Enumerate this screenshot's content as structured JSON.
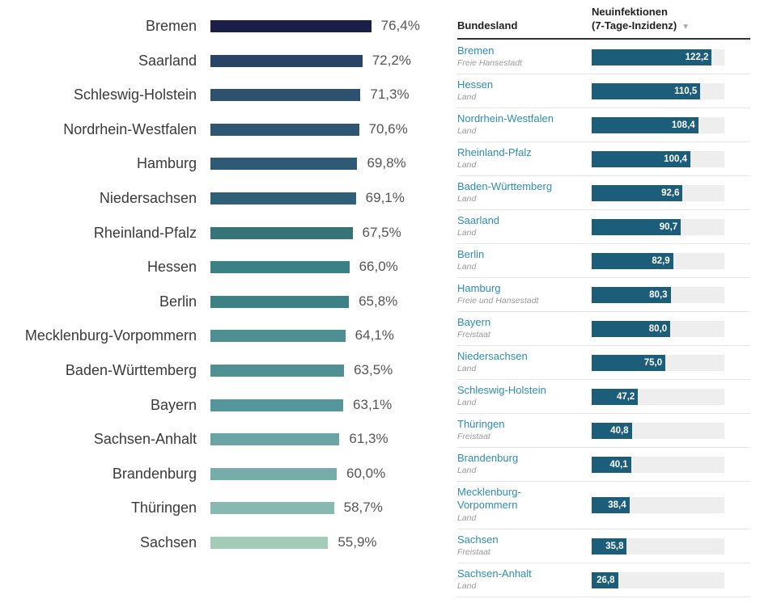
{
  "chart_data": [
    {
      "type": "bar",
      "orientation": "horizontal",
      "categories": [
        "Bremen",
        "Saarland",
        "Schleswig-Holstein",
        "Nordrhein-Westfalen",
        "Hamburg",
        "Niedersachsen",
        "Rheinland-Pfalz",
        "Hessen",
        "Berlin",
        "Mecklenburg-Vorpommern",
        "Baden-Württemberg",
        "Bayern",
        "Sachsen-Anhalt",
        "Brandenburg",
        "Thüringen",
        "Sachsen"
      ],
      "values": [
        76.4,
        72.2,
        71.3,
        70.6,
        69.8,
        69.1,
        67.5,
        66.0,
        65.8,
        64.1,
        63.5,
        63.1,
        61.3,
        60.0,
        58.7,
        55.9
      ],
      "labels": [
        "76,4%",
        "72,2%",
        "71,3%",
        "70,6%",
        "69,8%",
        "69,1%",
        "67,5%",
        "66,0%",
        "65,8%",
        "64,1%",
        "63,5%",
        "63,1%",
        "61,3%",
        "60,0%",
        "58,7%",
        "55,9%"
      ],
      "colors": [
        "#1a1f48",
        "#2a4468",
        "#2d5270",
        "#2e5673",
        "#2e5a76",
        "#306078",
        "#357479",
        "#3a8185",
        "#3b8185",
        "#4d8f92",
        "#4f9193",
        "#53979a",
        "#6aa4a4",
        "#76acaa",
        "#88b9b0",
        "#a4cab8"
      ],
      "xlim": [
        0,
        100
      ],
      "title": "",
      "xlabel": "",
      "ylabel": ""
    },
    {
      "type": "table",
      "columns": [
        "Bundesland",
        "Neuinfektionen\n(7-Tage-Inzidenz)"
      ],
      "rows": [
        {
          "name": "Bremen",
          "type": "Freie Hansestadt",
          "value": 122.2,
          "label": "122,2"
        },
        {
          "name": "Hessen",
          "type": "Land",
          "value": 110.5,
          "label": "110,5"
        },
        {
          "name": "Nordrhein-Westfalen",
          "type": "Land",
          "value": 108.4,
          "label": "108,4"
        },
        {
          "name": "Rheinland-Pfalz",
          "type": "Land",
          "value": 100.4,
          "label": "100,4"
        },
        {
          "name": "Baden-Württemberg",
          "type": "Land",
          "value": 92.6,
          "label": "92,6"
        },
        {
          "name": "Saarland",
          "type": "Land",
          "value": 90.7,
          "label": "90,7"
        },
        {
          "name": "Berlin",
          "type": "Land",
          "value": 82.9,
          "label": "82,9"
        },
        {
          "name": "Hamburg",
          "type": "Freie und Hansestadt",
          "value": 80.3,
          "label": "80,3"
        },
        {
          "name": "Bayern",
          "type": "Freistaat",
          "value": 80.0,
          "label": "80,0"
        },
        {
          "name": "Niedersachsen",
          "type": "Land",
          "value": 75.0,
          "label": "75,0"
        },
        {
          "name": "Schleswig-Holstein",
          "type": "Land",
          "value": 47.2,
          "label": "47,2"
        },
        {
          "name": "Thüringen",
          "type": "Freistaat",
          "value": 40.8,
          "label": "40,8"
        },
        {
          "name": "Brandenburg",
          "type": "Land",
          "value": 40.1,
          "label": "40,1"
        },
        {
          "name": "Mecklenburg-Vorpommern",
          "type": "Land",
          "value": 38.4,
          "label": "38,4"
        },
        {
          "name": "Sachsen",
          "type": "Freistaat",
          "value": 35.8,
          "label": "35,8"
        },
        {
          "name": "Sachsen-Anhalt",
          "type": "Land",
          "value": 26.8,
          "label": "26,8"
        }
      ],
      "xlim": [
        0,
        135
      ],
      "bar_color": "#1c5d7a",
      "track_color": "#eeeeee"
    }
  ],
  "table_header": {
    "land": "Bundesland",
    "inzidenz_line1": "Neuinfektionen",
    "inzidenz_line2": "(7-Tage-Inzidenz)",
    "sort_icon": "sort-desc-icon"
  }
}
